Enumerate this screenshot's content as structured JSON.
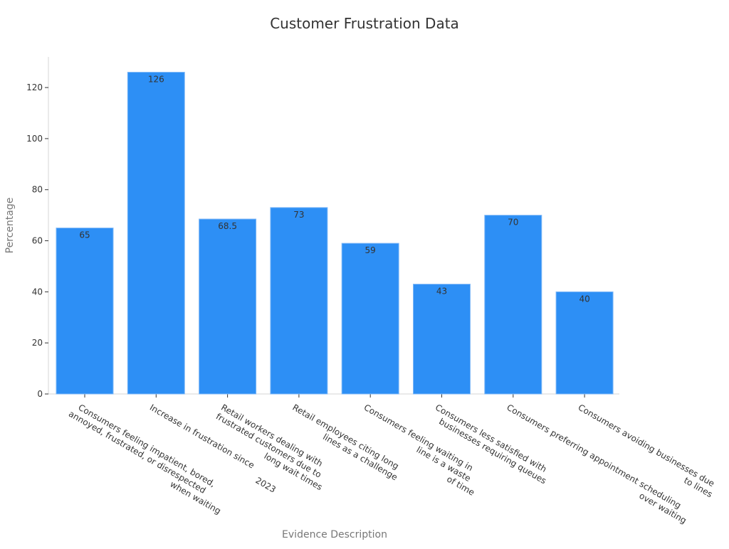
{
  "chart_data": {
    "type": "bar",
    "title": "Customer Frustration Data",
    "xlabel": "Evidence Description",
    "ylabel": "Percentage",
    "ylim": [
      0,
      132
    ],
    "yticks": [
      0,
      20,
      40,
      60,
      80,
      100,
      120
    ],
    "grid": false,
    "bar_color": "#2d8ff5",
    "categories": [
      [
        "Consumers feeling impatient, bored,",
        "annoyed, frustrated, or disrespected",
        "when waiting"
      ],
      [
        "Increase in frustration since",
        "2023"
      ],
      [
        "Retail workers dealing with",
        "frustrated customers due to",
        "long wait times"
      ],
      [
        "Retail employees citing long",
        "lines as a challenge"
      ],
      [
        "Consumers feeling waiting in",
        "line is a waste",
        "of time"
      ],
      [
        "Consumers less satisfied with",
        "businesses requiring queues"
      ],
      [
        "Consumers preferring appointment scheduling",
        "over waiting"
      ],
      [
        "Consumers avoiding businesses due",
        "to lines"
      ]
    ],
    "values": [
      65,
      126,
      68.5,
      73,
      59,
      43,
      70,
      40
    ],
    "value_labels": [
      "65",
      "126",
      "68.5",
      "73",
      "59",
      "43",
      "70",
      "40"
    ]
  }
}
